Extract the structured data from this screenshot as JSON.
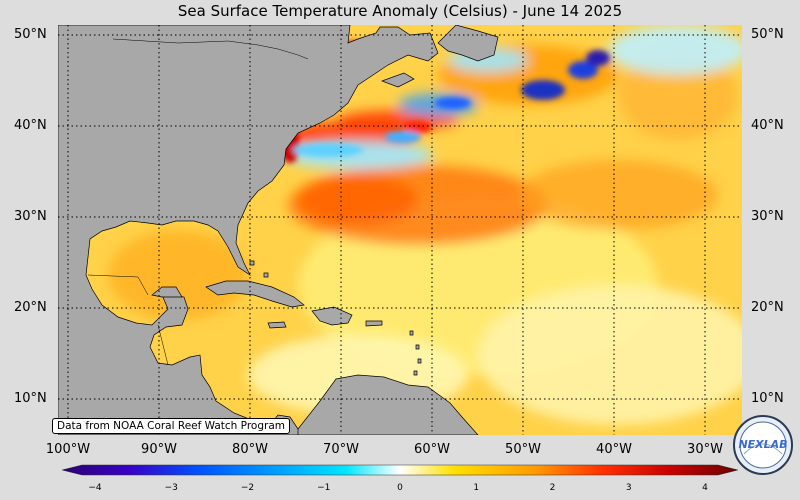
{
  "title": "Sea Surface Temperature Anomaly (Celsius) - June 14 2025",
  "colors": {
    "land": "#a8a8a8",
    "background": "#dddddd",
    "warm_base": "#ffd24a"
  },
  "latitude_labels": [
    "50°N",
    "40°N",
    "30°N",
    "20°N",
    "10°N"
  ],
  "longitude_labels": [
    "100°W",
    "90°W",
    "80°W",
    "70°W",
    "60°W",
    "50°W",
    "40°W",
    "30°W"
  ],
  "credit": "Data from NOAA Coral Reef Watch Program",
  "colorbar": {
    "range": [
      -4,
      4
    ],
    "ticks": [
      "−4",
      "−3",
      "−2",
      "−1",
      "0",
      "1",
      "2",
      "3",
      "4"
    ],
    "colors": [
      "#2a006e",
      "#3a00c8",
      "#0050ff",
      "#00a0ff",
      "#00e6ff",
      "#ffffff",
      "#ffe000",
      "#ff9a00",
      "#ff3000",
      "#c80000",
      "#6a0000"
    ]
  },
  "logo": {
    "text": "NEXLAB"
  }
}
